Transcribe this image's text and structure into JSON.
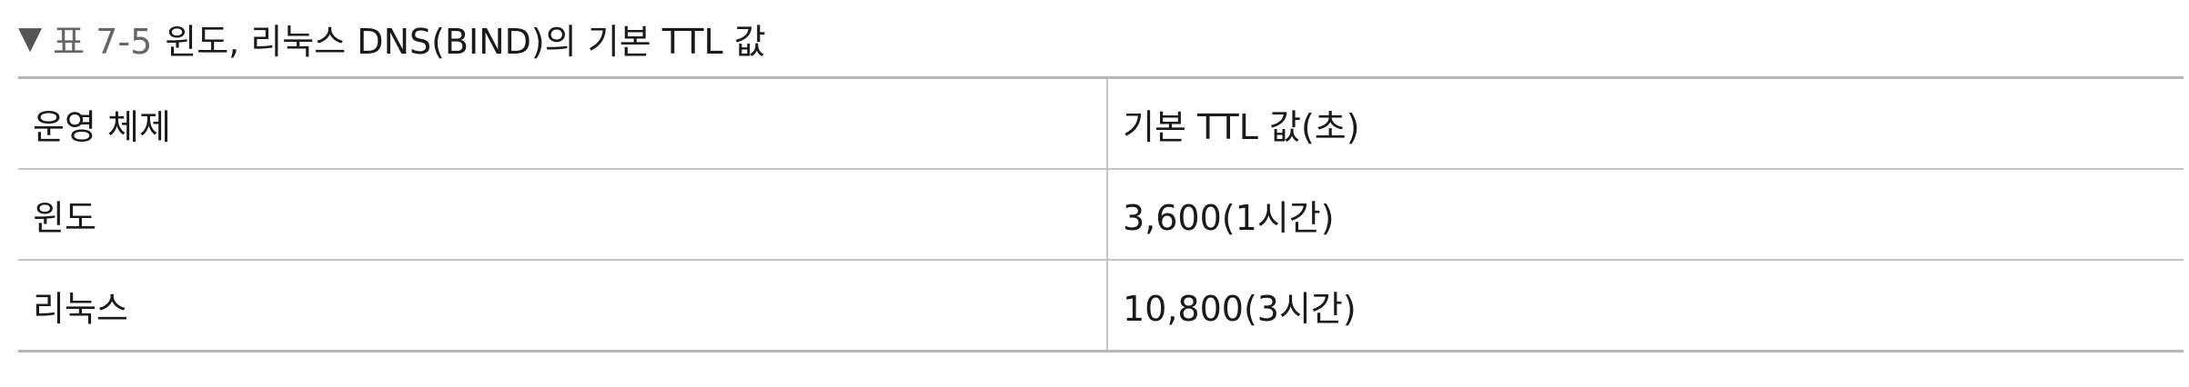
{
  "caption": {
    "marker": "▼",
    "label": "표 7-5",
    "title": "윈도, 리눅스 DNS(BIND)의 기본 TTL 값"
  },
  "table": {
    "headers": [
      "운영 체제",
      "기본 TTL 값(초)"
    ],
    "rows": [
      [
        "윈도",
        "3,600(1시간)"
      ],
      [
        "리눅스",
        "10,800(3시간)"
      ]
    ]
  }
}
